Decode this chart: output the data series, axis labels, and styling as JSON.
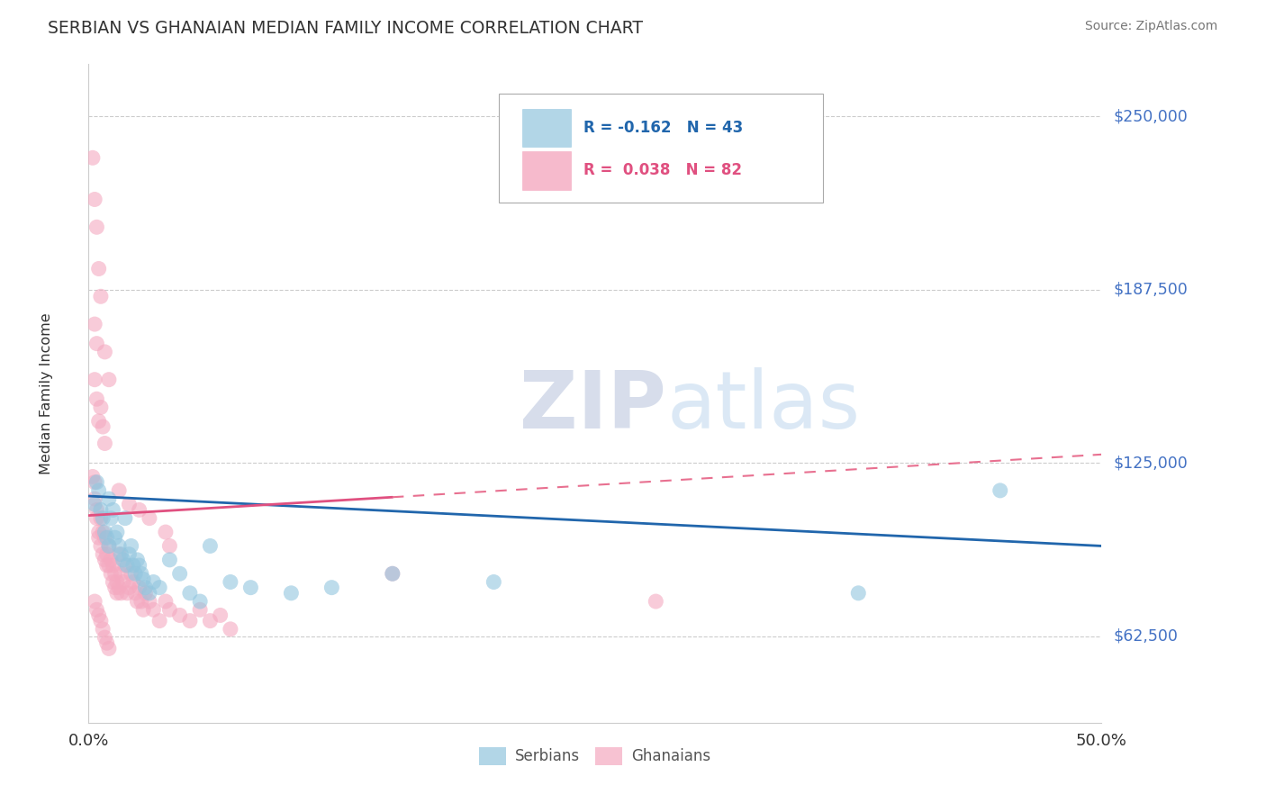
{
  "title": "SERBIAN VS GHANAIAN MEDIAN FAMILY INCOME CORRELATION CHART",
  "source_text": "Source: ZipAtlas.com",
  "ylabel": "Median Family Income",
  "ytick_labels": [
    "$62,500",
    "$125,000",
    "$187,500",
    "$250,000"
  ],
  "ytick_values": [
    62500,
    125000,
    187500,
    250000
  ],
  "ymin": 31250,
  "ymax": 268750,
  "xmin": 0.0,
  "xmax": 0.5,
  "watermark_zip": "ZIP",
  "watermark_atlas": "atlas",
  "serbian_color": "#92c5de",
  "ghanaian_color": "#f4a9c0",
  "serbian_line_color": "#2166ac",
  "ghanaian_solid_color": "#e05080",
  "ghanaian_dash_color": "#e87090",
  "legend_box_color": "#ccddee",
  "legend_pink_color": "#f4a9c0",
  "serbian_x": [
    0.003,
    0.004,
    0.005,
    0.006,
    0.007,
    0.008,
    0.009,
    0.01,
    0.01,
    0.011,
    0.012,
    0.013,
    0.014,
    0.015,
    0.016,
    0.017,
    0.018,
    0.019,
    0.02,
    0.021,
    0.022,
    0.023,
    0.024,
    0.025,
    0.026,
    0.027,
    0.028,
    0.03,
    0.032,
    0.035,
    0.04,
    0.045,
    0.05,
    0.055,
    0.06,
    0.07,
    0.08,
    0.1,
    0.12,
    0.15,
    0.2,
    0.45,
    0.38
  ],
  "serbian_y": [
    110000,
    118000,
    115000,
    108000,
    105000,
    100000,
    98000,
    112000,
    95000,
    105000,
    108000,
    98000,
    100000,
    95000,
    92000,
    90000,
    105000,
    88000,
    92000,
    95000,
    88000,
    85000,
    90000,
    88000,
    85000,
    83000,
    80000,
    78000,
    82000,
    80000,
    90000,
    85000,
    78000,
    75000,
    95000,
    82000,
    80000,
    78000,
    80000,
    85000,
    82000,
    115000,
    78000
  ],
  "ghanaian_x": [
    0.002,
    0.003,
    0.003,
    0.004,
    0.004,
    0.005,
    0.005,
    0.006,
    0.006,
    0.007,
    0.007,
    0.008,
    0.008,
    0.009,
    0.009,
    0.01,
    0.01,
    0.011,
    0.011,
    0.012,
    0.012,
    0.013,
    0.013,
    0.014,
    0.014,
    0.015,
    0.015,
    0.016,
    0.016,
    0.017,
    0.018,
    0.019,
    0.02,
    0.021,
    0.022,
    0.023,
    0.024,
    0.025,
    0.026,
    0.027,
    0.028,
    0.03,
    0.032,
    0.035,
    0.038,
    0.04,
    0.045,
    0.05,
    0.055,
    0.06,
    0.065,
    0.07,
    0.003,
    0.004,
    0.005,
    0.006,
    0.007,
    0.008,
    0.003,
    0.004,
    0.005,
    0.006,
    0.007,
    0.008,
    0.009,
    0.01,
    0.003,
    0.004,
    0.005,
    0.006,
    0.008,
    0.01,
    0.015,
    0.02,
    0.025,
    0.03,
    0.038,
    0.04,
    0.15,
    0.28,
    0.002,
    0.003,
    0.004
  ],
  "ghanaian_y": [
    120000,
    118000,
    112000,
    108000,
    105000,
    100000,
    98000,
    95000,
    105000,
    100000,
    92000,
    98000,
    90000,
    92000,
    88000,
    95000,
    88000,
    90000,
    85000,
    88000,
    82000,
    85000,
    80000,
    82000,
    78000,
    80000,
    92000,
    85000,
    78000,
    82000,
    88000,
    78000,
    80000,
    85000,
    82000,
    78000,
    75000,
    80000,
    75000,
    72000,
    78000,
    75000,
    72000,
    68000,
    75000,
    72000,
    70000,
    68000,
    72000,
    68000,
    70000,
    65000,
    155000,
    148000,
    140000,
    145000,
    138000,
    132000,
    75000,
    72000,
    70000,
    68000,
    65000,
    62000,
    60000,
    58000,
    175000,
    168000,
    195000,
    185000,
    165000,
    155000,
    115000,
    110000,
    108000,
    105000,
    100000,
    95000,
    85000,
    75000,
    235000,
    220000,
    210000
  ]
}
